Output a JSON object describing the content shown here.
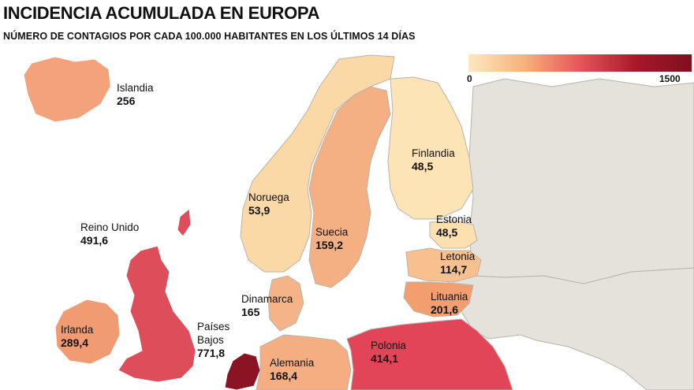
{
  "title": "INCIDENCIA ACUMULADA EN EUROPA",
  "subtitle": "NÚMERO DE CONTAGIOS POR CADA 100.000 HABITANTES EN LOS ÚLTIMOS 14 DÍAS",
  "legend": {
    "min": "0",
    "max": "1500",
    "colors": [
      "#fde9c0",
      "#f6a66e",
      "#e04850",
      "#86101f"
    ]
  },
  "countries": [
    {
      "id": "islandia",
      "name": "Islandia",
      "value": "256"
    },
    {
      "id": "finlandia",
      "name": "Finlandia",
      "value": "48,5"
    },
    {
      "id": "noruega",
      "name": "Noruega",
      "value": "53,9"
    },
    {
      "id": "suecia",
      "name": "Suecia",
      "value": "159,2"
    },
    {
      "id": "estonia",
      "name": "Estonia",
      "value": "48,5"
    },
    {
      "id": "letonia",
      "name": "Letonia",
      "value": "114,7"
    },
    {
      "id": "lituania",
      "name": "Lituania",
      "value": "201,6"
    },
    {
      "id": "reino-unido",
      "name": "Reino Unido",
      "value": "491,6"
    },
    {
      "id": "dinamarca",
      "name": "Dinamarca",
      "value": "165"
    },
    {
      "id": "irlanda",
      "name": "Irlanda",
      "value": "289,4"
    },
    {
      "id": "paises-bajos",
      "name": "Países Bajos",
      "value": "771,8"
    },
    {
      "id": "alemania",
      "name": "Alemania",
      "value": "168,4"
    },
    {
      "id": "polonia",
      "name": "Polonia",
      "value": "414,1"
    }
  ]
}
